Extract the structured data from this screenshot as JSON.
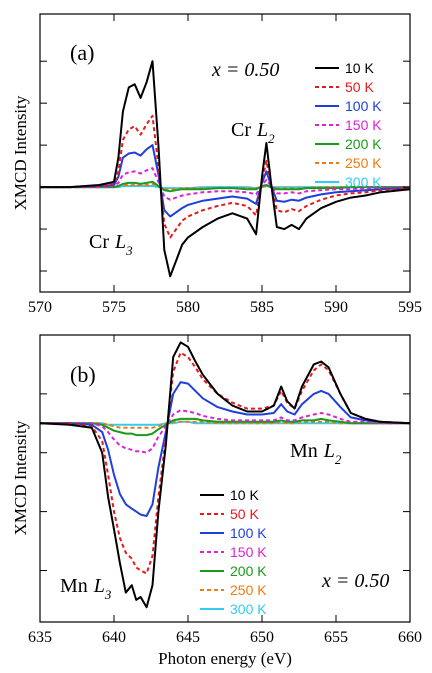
{
  "figure": {
    "shared_xlabel": "Photon energy (eV)",
    "panel_a": {
      "panel_label": "(a)",
      "x_annotation": "x = 0.50",
      "ylabel": "XMCD Intensity",
      "edge_L3": {
        "element": "Cr",
        "edge": "L",
        "sub": "3"
      },
      "edge_L2": {
        "element": "Cr",
        "edge": "L",
        "sub": "2"
      }
    },
    "panel_b": {
      "panel_label": "(b)",
      "x_annotation": "x = 0.50",
      "ylabel": "XMCD Intensity",
      "edge_L3": {
        "element": "Mn",
        "edge": "L",
        "sub": "3"
      },
      "edge_L2": {
        "element": "Mn",
        "edge": "L",
        "sub": "2"
      }
    }
  },
  "legend": [
    {
      "label": "10 K",
      "color": "#000000",
      "dash": "solid"
    },
    {
      "label": "50 K",
      "color": "#e41a1c",
      "dash": "dashed"
    },
    {
      "label": "100 K",
      "color": "#1f3fdc",
      "dash": "solid"
    },
    {
      "label": "150 K",
      "color": "#e020d8",
      "dash": "dashed"
    },
    {
      "label": "200 K",
      "color": "#1a9a1a",
      "dash": "solid"
    },
    {
      "label": "250 K",
      "color": "#f07a10",
      "dash": "dashed"
    },
    {
      "label": "300 K",
      "color": "#33ccee",
      "dash": "solid"
    }
  ],
  "chart_data": [
    {
      "type": "line",
      "title": "",
      "xlabel": "",
      "ylabel": "XMCD Intensity",
      "xlim": [
        570,
        595
      ],
      "ylim": [
        -1.0,
        1.65
      ],
      "xticks": [
        570,
        575,
        580,
        585,
        590,
        595
      ],
      "x": [
        570,
        572,
        574,
        575,
        575.3,
        575.6,
        576,
        576.4,
        576.8,
        577.2,
        577.6,
        578,
        578.4,
        578.8,
        579.2,
        579.6,
        580,
        581,
        582,
        583,
        584,
        584.6,
        585,
        585.3,
        585.6,
        586,
        586.5,
        587,
        587.5,
        588,
        589,
        590,
        591,
        592,
        593,
        595
      ],
      "series": [
        {
          "name": "10 K",
          "values": [
            0,
            0,
            0.02,
            0.05,
            0.28,
            0.72,
            0.95,
            0.98,
            0.85,
            1.0,
            1.2,
            0.4,
            -0.6,
            -0.85,
            -0.7,
            -0.55,
            -0.48,
            -0.38,
            -0.3,
            -0.25,
            -0.3,
            -0.45,
            0.1,
            0.42,
            0.05,
            -0.38,
            -0.4,
            -0.36,
            -0.4,
            -0.3,
            -0.2,
            -0.14,
            -0.1,
            -0.08,
            -0.05,
            -0.02
          ]
        },
        {
          "name": "50 K",
          "values": [
            0,
            0,
            0.01,
            0.03,
            0.15,
            0.45,
            0.55,
            0.58,
            0.5,
            0.6,
            0.68,
            0.2,
            -0.35,
            -0.48,
            -0.4,
            -0.32,
            -0.28,
            -0.22,
            -0.18,
            -0.15,
            -0.18,
            -0.27,
            0.06,
            0.25,
            0.03,
            -0.22,
            -0.24,
            -0.21,
            -0.23,
            -0.18,
            -0.12,
            -0.08,
            -0.06,
            -0.05,
            -0.03,
            -0.01
          ]
        },
        {
          "name": "100 K",
          "values": [
            0,
            0,
            0.01,
            0.02,
            0.1,
            0.28,
            0.32,
            0.33,
            0.3,
            0.36,
            0.4,
            0.12,
            -0.22,
            -0.28,
            -0.24,
            -0.2,
            -0.17,
            -0.13,
            -0.11,
            -0.09,
            -0.11,
            -0.16,
            0.04,
            0.15,
            0.02,
            -0.13,
            -0.14,
            -0.12,
            -0.13,
            -0.1,
            -0.07,
            -0.05,
            -0.04,
            -0.03,
            -0.02,
            -0.01
          ]
        },
        {
          "name": "150 K",
          "values": [
            0,
            0,
            0,
            0.01,
            0.04,
            0.12,
            0.14,
            0.15,
            0.13,
            0.16,
            0.18,
            0.05,
            -0.09,
            -0.12,
            -0.1,
            -0.08,
            -0.07,
            -0.05,
            -0.04,
            -0.04,
            -0.05,
            -0.07,
            0.02,
            0.07,
            0.01,
            -0.06,
            -0.06,
            -0.05,
            -0.06,
            -0.04,
            -0.03,
            -0.02,
            -0.02,
            -0.01,
            -0.01,
            0
          ]
        },
        {
          "name": "200 K",
          "values": [
            0,
            0,
            0,
            0,
            0.01,
            0.03,
            0.04,
            0.04,
            0.03,
            0.04,
            0.05,
            0.01,
            -0.03,
            -0.04,
            -0.03,
            -0.02,
            -0.02,
            -0.02,
            -0.01,
            -0.01,
            -0.02,
            -0.02,
            0.01,
            0.02,
            0,
            -0.02,
            -0.02,
            -0.02,
            -0.02,
            -0.01,
            -0.01,
            -0.01,
            0,
            0,
            0,
            0
          ]
        },
        {
          "name": "250 K",
          "values": [
            0,
            0,
            0,
            0,
            0.01,
            0.02,
            0.02,
            0.02,
            0.02,
            0.02,
            0.03,
            0.01,
            -0.02,
            -0.02,
            -0.02,
            -0.01,
            -0.01,
            -0.01,
            -0.01,
            -0.01,
            -0.01,
            -0.01,
            0,
            0.01,
            0,
            -0.01,
            -0.01,
            -0.01,
            -0.01,
            -0.01,
            0,
            0,
            0,
            0,
            0,
            0
          ]
        },
        {
          "name": "300 K",
          "values": [
            0,
            0,
            0,
            0,
            0,
            0.01,
            0.01,
            0.01,
            0.01,
            0.01,
            0.01,
            0,
            -0.01,
            -0.01,
            -0.01,
            -0.01,
            -0.01,
            0,
            0,
            0,
            0,
            -0.01,
            0,
            0.01,
            0,
            0,
            0,
            0,
            0,
            0,
            0,
            0,
            0,
            0,
            0,
            0
          ]
        }
      ]
    },
    {
      "type": "line",
      "title": "",
      "xlabel": "Photon energy (eV)",
      "ylabel": "XMCD Intensity",
      "xlim": [
        635,
        660
      ],
      "ylim": [
        -1.35,
        0.6
      ],
      "xticks": [
        635,
        640,
        645,
        650,
        655,
        660
      ],
      "x": [
        635,
        637,
        638.5,
        639.2,
        639.6,
        640,
        640.4,
        640.8,
        641.2,
        641.5,
        641.8,
        642.2,
        642.6,
        643,
        643.5,
        644,
        644.5,
        645,
        645.5,
        646,
        647,
        648,
        649,
        650,
        650.8,
        651.3,
        651.7,
        652.2,
        652.7,
        653.5,
        654,
        654.5,
        655.3,
        656,
        657,
        658,
        660
      ],
      "series": [
        {
          "name": "10 K",
          "values": [
            0,
            -0.01,
            -0.03,
            -0.2,
            -0.5,
            -0.72,
            -0.95,
            -1.15,
            -1.1,
            -1.2,
            -1.18,
            -1.25,
            -1.1,
            -0.6,
            -0.15,
            0.45,
            0.55,
            0.52,
            0.42,
            0.33,
            0.2,
            0.12,
            0.08,
            0.08,
            0.12,
            0.25,
            0.15,
            0.1,
            0.25,
            0.4,
            0.42,
            0.38,
            0.2,
            0.07,
            0.03,
            0.01,
            0
          ]
        },
        {
          "name": "50 K",
          "values": [
            0,
            0,
            -0.02,
            -0.12,
            -0.35,
            -0.6,
            -0.78,
            -0.88,
            -0.92,
            -0.98,
            -1.0,
            -1.02,
            -0.9,
            -0.5,
            -0.1,
            0.35,
            0.48,
            0.45,
            0.38,
            0.3,
            0.2,
            0.14,
            0.1,
            0.1,
            0.12,
            0.22,
            0.14,
            0.1,
            0.22,
            0.36,
            0.4,
            0.36,
            0.2,
            0.07,
            0.03,
            0.01,
            0
          ]
        },
        {
          "name": "100 K",
          "values": [
            0,
            0,
            -0.01,
            -0.06,
            -0.18,
            -0.35,
            -0.48,
            -0.55,
            -0.58,
            -0.6,
            -0.62,
            -0.63,
            -0.55,
            -0.3,
            -0.06,
            0.2,
            0.28,
            0.27,
            0.22,
            0.17,
            0.11,
            0.08,
            0.06,
            0.06,
            0.07,
            0.13,
            0.08,
            0.06,
            0.13,
            0.2,
            0.22,
            0.2,
            0.11,
            0.04,
            0.02,
            0.01,
            0
          ]
        },
        {
          "name": "150 K",
          "values": [
            0,
            0,
            0,
            -0.02,
            -0.06,
            -0.11,
            -0.15,
            -0.17,
            -0.18,
            -0.19,
            -0.19,
            -0.2,
            -0.17,
            -0.09,
            -0.02,
            0.06,
            0.09,
            0.08,
            0.07,
            0.05,
            0.03,
            0.02,
            0.02,
            0.02,
            0.02,
            0.04,
            0.02,
            0.02,
            0.04,
            0.06,
            0.07,
            0.06,
            0.03,
            0.01,
            0.01,
            0,
            0
          ]
        },
        {
          "name": "200 K",
          "values": [
            0,
            0,
            0,
            -0.01,
            -0.03,
            -0.05,
            -0.06,
            -0.07,
            -0.07,
            -0.08,
            -0.08,
            -0.08,
            -0.07,
            -0.04,
            -0.01,
            0.02,
            0.03,
            0.03,
            0.03,
            0.02,
            0.01,
            0.01,
            0.01,
            0.01,
            0.01,
            0.02,
            0.01,
            0.01,
            0.02,
            0.02,
            0.03,
            0.02,
            0.01,
            0,
            0,
            0,
            0
          ]
        },
        {
          "name": "250 K",
          "values": [
            0,
            0,
            0,
            0,
            -0.01,
            -0.02,
            -0.03,
            -0.03,
            -0.03,
            -0.03,
            -0.03,
            -0.03,
            -0.03,
            -0.02,
            0,
            0.01,
            0.01,
            0.01,
            0.01,
            0.01,
            0,
            0,
            0,
            0,
            0,
            0.01,
            0,
            0,
            0.01,
            0.01,
            0.01,
            0.01,
            0,
            0,
            0,
            0,
            0
          ]
        },
        {
          "name": "300 K",
          "values": [
            0,
            0,
            0,
            0,
            -0.01,
            -0.01,
            -0.01,
            -0.01,
            -0.01,
            -0.01,
            -0.01,
            -0.01,
            -0.01,
            -0.01,
            0,
            0,
            0.01,
            0.01,
            0,
            0,
            0,
            0,
            0,
            0,
            0,
            0,
            0,
            0,
            0,
            0,
            0,
            0,
            0,
            0,
            0,
            0,
            0
          ]
        }
      ]
    }
  ]
}
